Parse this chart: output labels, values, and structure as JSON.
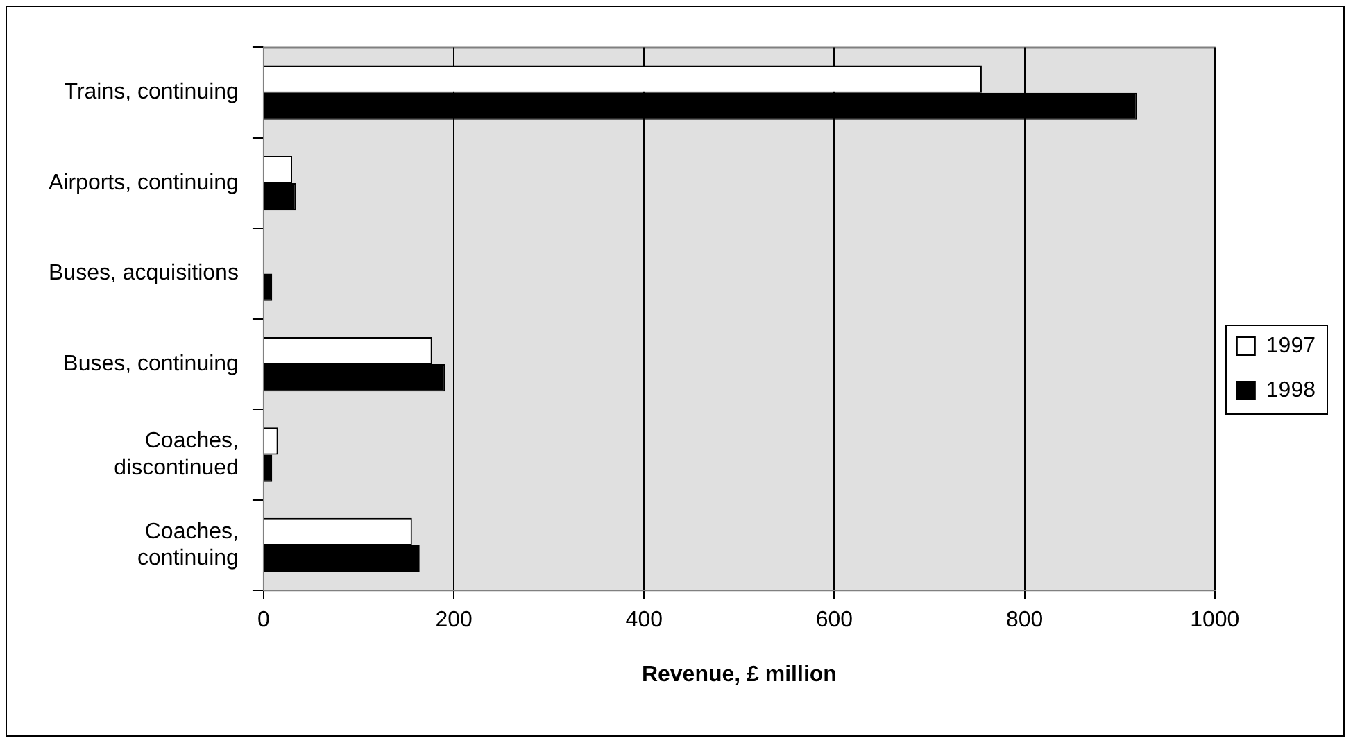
{
  "chart_data": {
    "type": "bar",
    "orientation": "horizontal",
    "xlabel": "Revenue, £ million",
    "categories": [
      "Trains, continuing",
      "Airports, continuing",
      "Buses, acquisitions",
      "Buses, continuing",
      "Coaches, discontinued",
      "Coaches, continuing"
    ],
    "series": [
      {
        "name": "1997",
        "color": "#ffffff",
        "values": [
          755,
          30,
          null,
          177,
          15,
          156
        ]
      },
      {
        "name": "1998",
        "color": "#000000",
        "values": [
          918,
          34,
          9,
          191,
          9,
          164
        ]
      }
    ],
    "xlim": [
      0,
      1000
    ],
    "xticks": [
      0,
      200,
      400,
      600,
      800,
      1000
    ],
    "grid": "x",
    "legend": "right"
  }
}
